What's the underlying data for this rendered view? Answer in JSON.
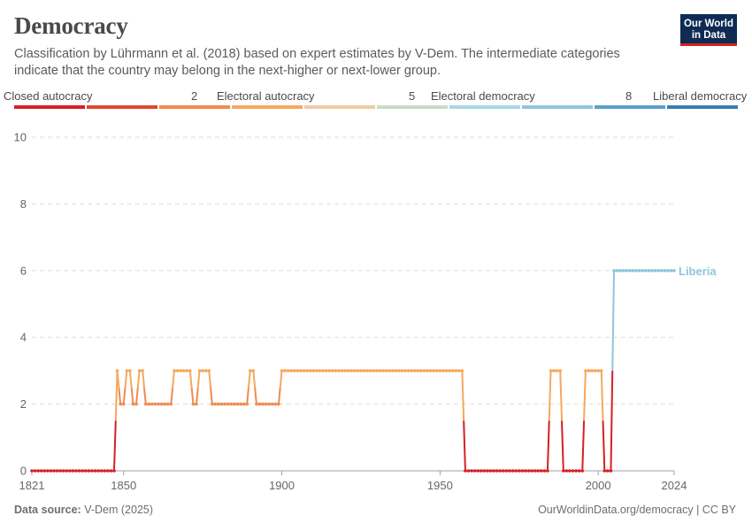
{
  "header": {
    "title": "Democracy",
    "subtitle": "Classification by Lührmann et al. (2018) based on expert estimates by V-Dem. The intermediate categories indicate that the country may belong in the next-higher or next-lower group.",
    "logo_line1": "Our World",
    "logo_line2": "in Data"
  },
  "legend": {
    "labels": [
      "Closed autocracy",
      "2",
      "Electoral autocracy",
      "5",
      "Electoral democracy",
      "8",
      "Liberal democracy"
    ],
    "colors": [
      "#d62027",
      "#e0492f",
      "#ef8c4f",
      "#f5a85d",
      "#ebcda5",
      "#c8dcc3",
      "#a8d8e3",
      "#8ec6dc",
      "#5b9fc9",
      "#3a7bb2"
    ]
  },
  "footer": {
    "source_label": "Data source:",
    "source_value": "V-Dem (2025)",
    "url": "OurWorldinData.org/democracy | CC BY"
  },
  "chart_data": {
    "type": "line",
    "title": "Democracy",
    "xlim": [
      1821,
      2024
    ],
    "ylim": [
      0,
      10
    ],
    "yticks": [
      0,
      2,
      4,
      6,
      8,
      10
    ],
    "xticks": [
      1821,
      1850,
      1900,
      1950,
      2000,
      2024
    ],
    "grid": true,
    "series": [
      {
        "name": "Liberia",
        "color_by_value": {
          "0": "#d62027",
          "2": "#ef8c4f",
          "3": "#f5a85d",
          "6": "#8ec6dc"
        },
        "segments": [
          {
            "from": 1821,
            "to": 1847,
            "value": 0
          },
          {
            "from": 1848,
            "to": 1848,
            "value": 3
          },
          {
            "from": 1849,
            "to": 1850,
            "value": 2
          },
          {
            "from": 1851,
            "to": 1852,
            "value": 3
          },
          {
            "from": 1853,
            "to": 1854,
            "value": 2
          },
          {
            "from": 1855,
            "to": 1856,
            "value": 3
          },
          {
            "from": 1857,
            "to": 1865,
            "value": 2
          },
          {
            "from": 1866,
            "to": 1871,
            "value": 3
          },
          {
            "from": 1872,
            "to": 1873,
            "value": 2
          },
          {
            "from": 1874,
            "to": 1877,
            "value": 3
          },
          {
            "from": 1878,
            "to": 1889,
            "value": 2
          },
          {
            "from": 1890,
            "to": 1891,
            "value": 3
          },
          {
            "from": 1892,
            "to": 1899,
            "value": 2
          },
          {
            "from": 1900,
            "to": 1957,
            "value": 3
          },
          {
            "from": 1958,
            "to": 1984,
            "value": 0
          },
          {
            "from": 1985,
            "to": 1988,
            "value": 3
          },
          {
            "from": 1989,
            "to": 1995,
            "value": 0
          },
          {
            "from": 1996,
            "to": 2001,
            "value": 3
          },
          {
            "from": 2002,
            "to": 2004,
            "value": 0
          },
          {
            "from": 2005,
            "to": 2024,
            "value": 6
          }
        ]
      }
    ]
  }
}
